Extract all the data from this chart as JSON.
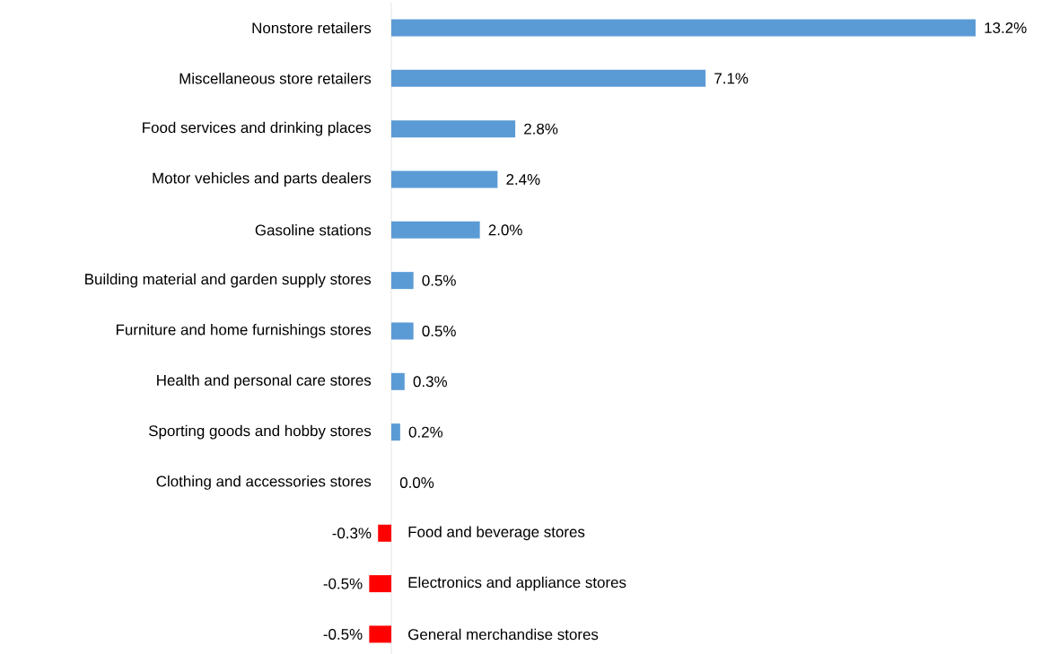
{
  "chart_data": {
    "type": "bar",
    "orientation": "horizontal",
    "categories": [
      "Nonstore retailers",
      "Miscellaneous store retailers",
      "Food services and drinking places",
      "Motor vehicles and parts dealers",
      "Gasoline stations",
      "Building material and garden supply stores",
      "Furniture and home furnishings stores",
      "Health and personal care stores",
      "Sporting goods and hobby stores",
      "Clothing and accessories stores",
      "Food and beverage stores",
      "Electronics and appliance stores",
      "General merchandise stores"
    ],
    "values": [
      13.2,
      7.1,
      2.8,
      2.4,
      2.0,
      0.5,
      0.5,
      0.3,
      0.2,
      0.0,
      -0.3,
      -0.5,
      -0.5
    ],
    "colors": [
      "#5b9bd5",
      "#5b9bd5",
      "#5b9bd5",
      "#5b9bd5",
      "#5b9bd5",
      "#5b9bd5",
      "#5b9bd5",
      "#5b9bd5",
      "#5b9bd5",
      "#5b9bd5",
      "#ff0000",
      "#ff0000",
      "#ff0000"
    ],
    "value_labels": [
      "13.2%",
      "7.1%",
      "2.8%",
      "2.4%",
      "2.0%",
      "0.5%",
      "0.5%",
      "0.3%",
      "0.2%",
      "0.0%",
      "-0.3%",
      "-0.5%",
      "-0.5%"
    ]
  }
}
